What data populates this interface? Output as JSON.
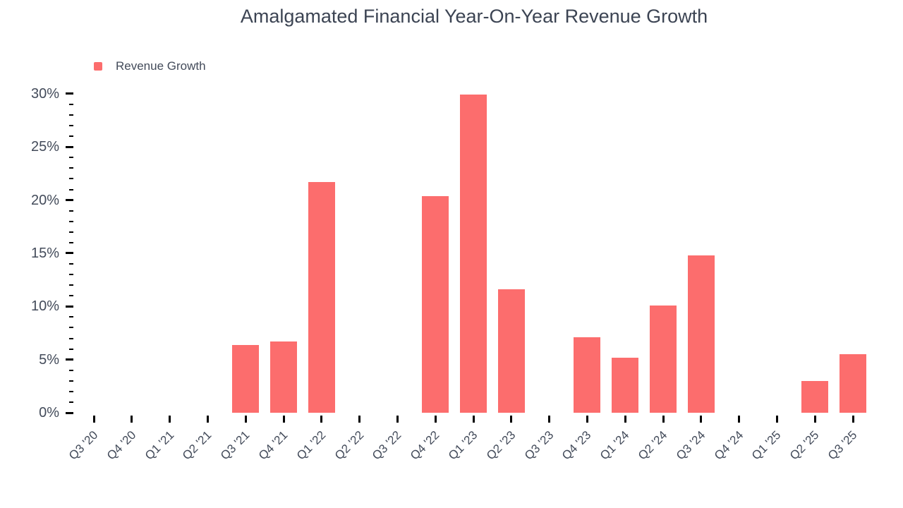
{
  "colors": {
    "background": "#FFFFFF",
    "bar": "#FC6D6D",
    "title_text": "#3C4453",
    "axis_text": "#434B5A",
    "tick": "#000000"
  },
  "chart_data": {
    "type": "bar",
    "title": "Amalgamated Financial Year-On-Year Revenue Growth",
    "legend_entries": [
      "Revenue Growth"
    ],
    "legend_position": "top-left",
    "categories": [
      "Q3 '20",
      "Q4 '20",
      "Q1 '21",
      "Q2 '21",
      "Q3 '21",
      "Q4 '21",
      "Q1 '22",
      "Q2 '22",
      "Q3 '22",
      "Q4 '22",
      "Q1 '23",
      "Q2 '23",
      "Q3 '23",
      "Q4 '23",
      "Q1 '24",
      "Q2 '24",
      "Q3 '24",
      "Q4 '24",
      "Q1 '25",
      "Q2 '25",
      "Q3 '25"
    ],
    "values": [
      0,
      0,
      0,
      0,
      6.4,
      6.7,
      21.7,
      0,
      0,
      20.4,
      29.9,
      11.6,
      0,
      7.1,
      5.2,
      10.1,
      14.8,
      0,
      0,
      3.0,
      5.5
    ],
    "unit": "%",
    "xlabel": "",
    "ylabel": "",
    "ylim": [
      0,
      30
    ],
    "y_major_ticks": [
      0,
      5,
      10,
      15,
      20,
      25,
      30
    ],
    "y_tick_labels": [
      "0%",
      "5%",
      "10%",
      "15%",
      "20%",
      "25%",
      "30%"
    ],
    "y_minor_step": 1,
    "grid": false,
    "x_tick_rotation_deg": -45
  }
}
